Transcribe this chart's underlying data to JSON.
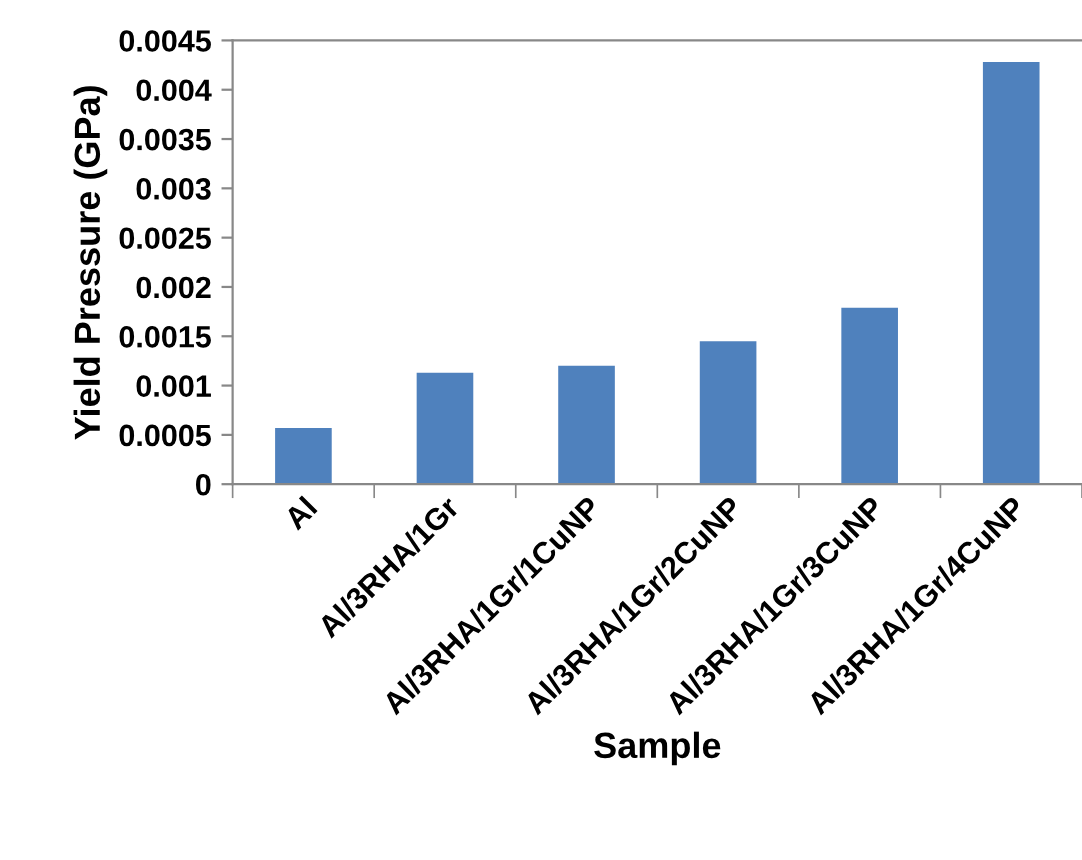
{
  "chart_data": {
    "type": "bar",
    "xlabel": "Sample",
    "ylabel": "Yield Pressure (GPa)",
    "categories": [
      "Al",
      "Al/3RHA/1Gr",
      "Al/3RHA/1Gr/1CuNP",
      "Al/3RHA/1Gr/2CuNP",
      "Al/3RHA/1Gr/3CuNP",
      "Al/3RHA/1Gr/4CuNP"
    ],
    "values": [
      0.00057,
      0.00113,
      0.0012,
      0.00145,
      0.00179,
      0.00428
    ],
    "color": "#4f81bd",
    "ylim": [
      0,
      0.0045
    ],
    "yticks": [
      0,
      0.0005,
      0.001,
      0.0015,
      0.002,
      0.0025,
      0.003,
      0.0035,
      0.004,
      0.0045
    ],
    "grid": false,
    "legend": false
  }
}
